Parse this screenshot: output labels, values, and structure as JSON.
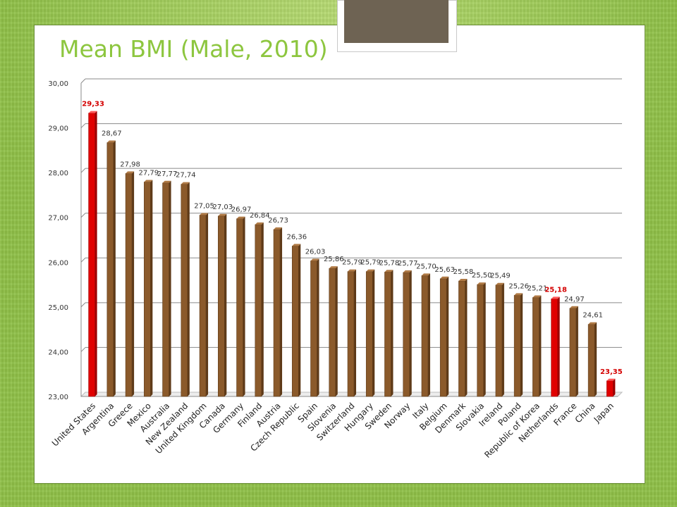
{
  "slide": {
    "title": "Mean BMI (Male, 2010)"
  },
  "colors": {
    "bar": "#8b5a2b",
    "highlight": "#e00000",
    "label_highlight": "#d40000",
    "label": "#333333",
    "title": "#8dc63f"
  },
  "chart_data": {
    "type": "bar",
    "title": "Mean BMI (Male, 2010)",
    "xlabel": "",
    "ylabel": "",
    "ylim": [
      23,
      30
    ],
    "yticks": [
      "23,00",
      "24,00",
      "25,00",
      "26,00",
      "27,00",
      "28,00",
      "29,00",
      "30,00"
    ],
    "grid": true,
    "categories": [
      "United States",
      "Argentina",
      "Greece",
      "Mexico",
      "Australia",
      "New Zealand",
      "United Kingdom",
      "Canada",
      "Germany",
      "Finland",
      "Austria",
      "Czech Republic",
      "Spain",
      "Slovenia",
      "Switzerland",
      "Hungary",
      "Sweden",
      "Norway",
      "Italy",
      "Belgium",
      "Denmark",
      "Slovakia",
      "Ireland",
      "Poland",
      "Republic of Korea",
      "Netherlands",
      "France",
      "China",
      "Japan"
    ],
    "values": [
      29.33,
      28.67,
      27.98,
      27.79,
      27.77,
      27.74,
      27.05,
      27.03,
      26.97,
      26.84,
      26.73,
      26.36,
      26.03,
      25.86,
      25.79,
      25.79,
      25.78,
      25.77,
      25.7,
      25.63,
      25.58,
      25.5,
      25.49,
      25.26,
      25.21,
      25.18,
      24.97,
      24.61,
      23.35
    ],
    "value_labels": [
      "29,33",
      "28,67",
      "27,98",
      "27,79",
      "27,77",
      "27,74",
      "27,05",
      "27,03",
      "26,97",
      "26,84",
      "26,73",
      "26,36",
      "26,03",
      "25,86",
      "25,79",
      "25,79",
      "25,78",
      "25,77",
      "25,70",
      "25,63",
      "25,58",
      "25,50",
      "25,49",
      "25,26",
      "25,21",
      "25,18",
      "24,97",
      "24,61",
      "23,35"
    ],
    "highlighted": [
      "United States",
      "Netherlands",
      "Japan"
    ]
  }
}
